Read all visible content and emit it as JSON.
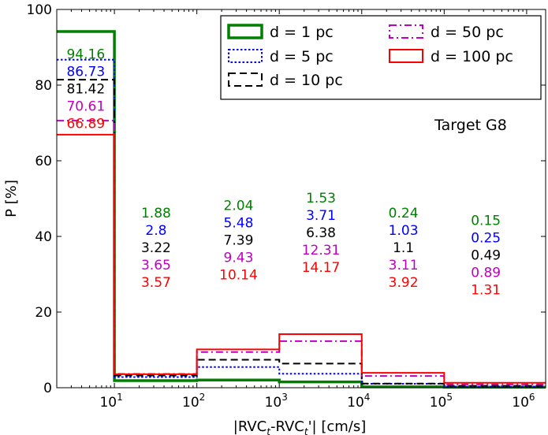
{
  "chart_data": {
    "type": "step-histogram",
    "title": "",
    "annotation": "Target G8",
    "xlabel": "|RVCₜ-RVCₜ'| [cm/s]",
    "ylabel": "P [%]",
    "x_scale": "log",
    "xlim": [
      2,
      1700000
    ],
    "ylim": [
      0,
      100
    ],
    "yticks": [
      0,
      20,
      40,
      60,
      80,
      100
    ],
    "xticks": [
      {
        "value": 10,
        "base": "10",
        "exp": "1"
      },
      {
        "value": 100,
        "base": "10",
        "exp": "2"
      },
      {
        "value": 1000,
        "base": "10",
        "exp": "3"
      },
      {
        "value": 10000,
        "base": "10",
        "exp": "4"
      },
      {
        "value": 100000,
        "base": "10",
        "exp": "5"
      },
      {
        "value": 1000000,
        "base": "10",
        "exp": "6"
      }
    ],
    "bins": [
      {
        "from": 2,
        "to": 10,
        "label_x": 4.5
      },
      {
        "from": 10,
        "to": 100,
        "label_x": 32
      },
      {
        "from": 100,
        "to": 1000,
        "label_x": 320
      },
      {
        "from": 1000,
        "to": 10000,
        "label_x": 3200
      },
      {
        "from": 10000,
        "to": 100000,
        "label_x": 32000
      },
      {
        "from": 100000,
        "to": 1700000,
        "label_x": 320000
      }
    ],
    "label_tops": [
      87,
      45,
      47,
      49,
      45,
      43
    ],
    "series": [
      {
        "name": "d = 1 pc",
        "color": "#008000",
        "dash": "solid",
        "width": 3.5,
        "values": [
          94.16,
          1.88,
          2.04,
          1.53,
          0.24,
          0.15
        ],
        "labels": [
          "94.16",
          "1.88",
          "2.04",
          "1.53",
          "0.24",
          "0.15"
        ]
      },
      {
        "name": "d = 5 pc",
        "color": "#0000ff",
        "dash": "dotted",
        "width": 2,
        "values": [
          86.73,
          2.8,
          5.48,
          3.71,
          1.03,
          0.25
        ],
        "labels": [
          "86.73",
          "2.8",
          "5.48",
          "3.71",
          "1.03",
          "0.25"
        ]
      },
      {
        "name": "d = 10 pc",
        "color": "#000000",
        "dash": "dashed",
        "width": 2,
        "values": [
          81.42,
          3.22,
          7.39,
          6.38,
          1.1,
          0.49
        ],
        "labels": [
          "81.42",
          "3.22",
          "7.39",
          "6.38",
          "1.1",
          "0.49"
        ]
      },
      {
        "name": "d = 50 pc",
        "color": "#bf00bf",
        "dash": "dashdot",
        "width": 2,
        "values": [
          70.61,
          3.65,
          9.43,
          12.31,
          3.11,
          0.89
        ],
        "labels": [
          "70.61",
          "3.65",
          "9.43",
          "12.31",
          "3.11",
          "0.89"
        ]
      },
      {
        "name": "d = 100 pc",
        "color": "#ff0000",
        "dash": "solid",
        "width": 2,
        "values": [
          66.89,
          3.57,
          10.14,
          14.17,
          3.92,
          1.31
        ],
        "labels": [
          "66.89",
          "3.57",
          "10.14",
          "14.17",
          "3.92",
          "1.31"
        ]
      }
    ],
    "legend": {
      "placement": "top-right",
      "columns": [
        [
          0,
          1,
          2
        ],
        [
          3,
          4
        ]
      ]
    }
  }
}
